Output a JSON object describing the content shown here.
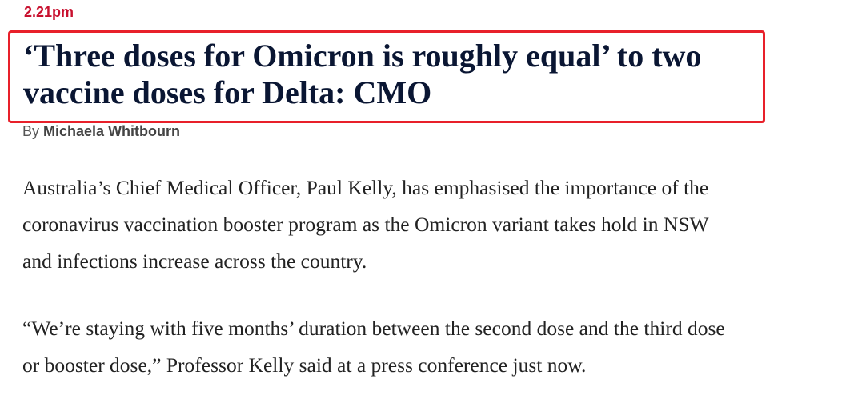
{
  "entry": {
    "time": "2.21pm",
    "headline": {
      "lines": [
        "‘Three doses for Omicron is roughly equal’ to two",
        "vaccine doses for Delta: CMO"
      ]
    },
    "byline": {
      "prefix": "By",
      "author": "Michaela Whitbourn"
    },
    "paragraphs": [
      {
        "lines": [
          "Australia’s Chief Medical Officer, Paul Kelly, has emphasised the importance of the",
          "coronavirus vaccination booster program as the Omicron variant takes hold in NSW",
          "and infections increase across the country."
        ]
      },
      {
        "lines": [
          "“We’re staying with five months’ duration between the second dose and the third dose",
          "or booster dose,” Professor Kelly said at a press conference just now."
        ]
      }
    ]
  }
}
